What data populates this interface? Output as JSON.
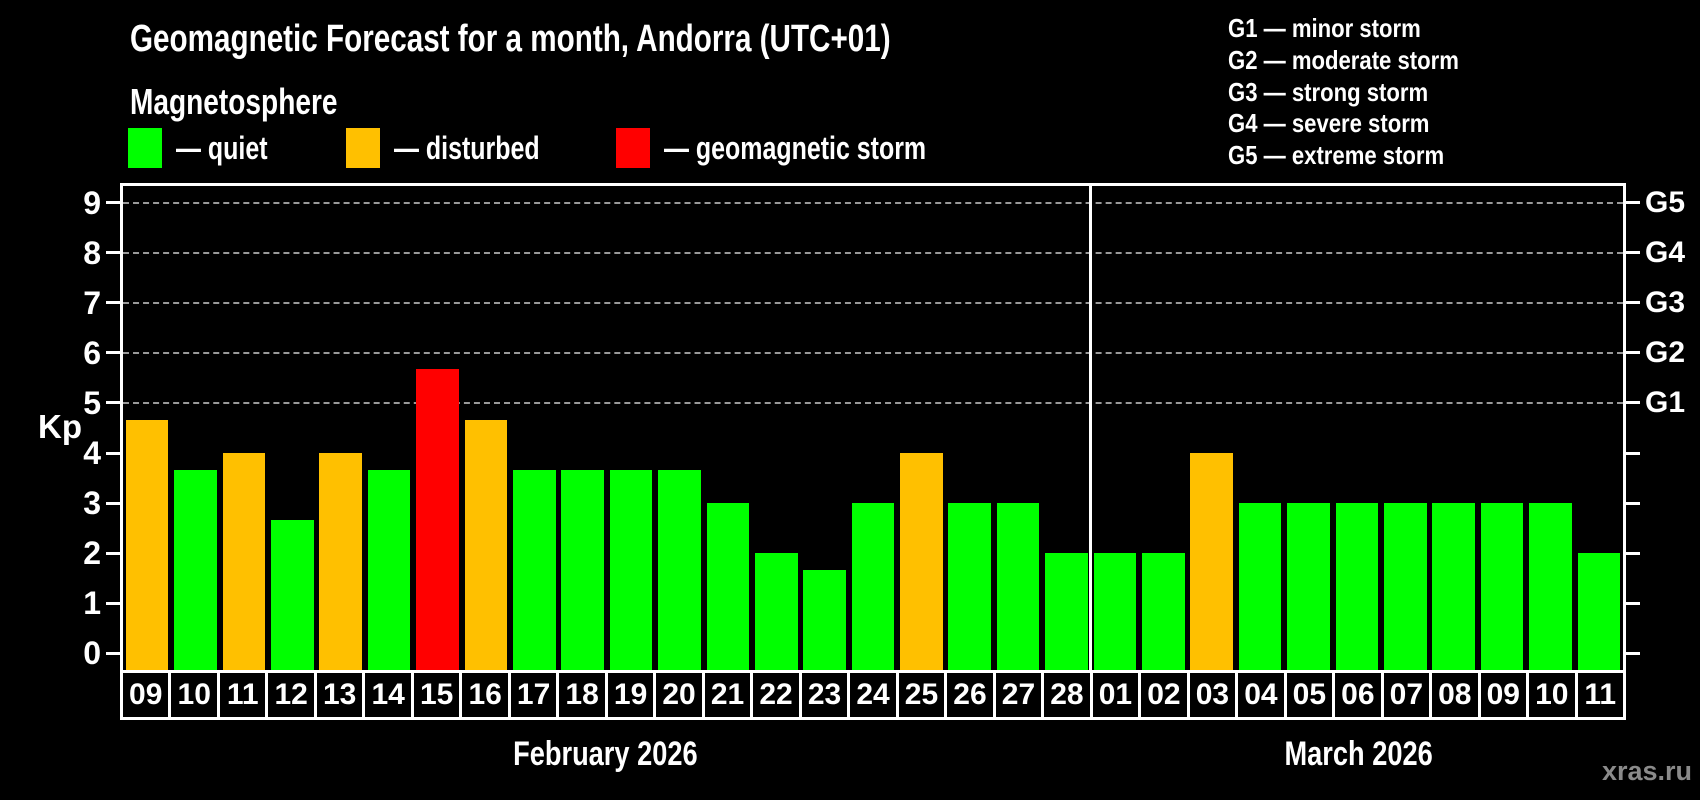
{
  "header": {
    "title": "Geomagnetic Forecast for a month, Andorra (UTC+01)",
    "subtitle": "Magnetosphere",
    "legend": [
      {
        "label": "— quiet",
        "level": "quiet"
      },
      {
        "label": "— disturbed",
        "level": "disturbed"
      },
      {
        "label": "— geomagnetic storm",
        "level": "storm"
      }
    ],
    "g_legend": [
      "G1 — minor storm",
      "G2 — moderate storm",
      "G3 — strong storm",
      "G4 — severe storm",
      "G5 — extreme storm"
    ]
  },
  "colors": {
    "quiet": "#00ff00",
    "disturbed": "#ffc000",
    "storm": "#ff0000",
    "grid": "#999999",
    "frame": "#ffffff",
    "watermark": "#8a8a8a"
  },
  "chart_data": {
    "type": "bar",
    "title": "Geomagnetic Forecast for a month, Andorra (UTC+01)",
    "ylabel": "Kp",
    "ylim": [
      0,
      9
    ],
    "y_ticks": [
      0,
      1,
      2,
      3,
      4,
      5,
      6,
      7,
      8,
      9
    ],
    "grid_lines_kp": [
      5,
      6,
      7,
      8,
      9
    ],
    "grid_style": "dashed",
    "legend_position": "top",
    "right_axis_labels": [
      {
        "kp": 5,
        "label": "G1"
      },
      {
        "kp": 6,
        "label": "G2"
      },
      {
        "kp": 7,
        "label": "G3"
      },
      {
        "kp": 8,
        "label": "G4"
      },
      {
        "kp": 9,
        "label": "G5"
      }
    ],
    "months": [
      {
        "label": "February 2026",
        "days": [
          {
            "day": "09",
            "kp": 4.67,
            "level": "disturbed"
          },
          {
            "day": "10",
            "kp": 3.67,
            "level": "quiet"
          },
          {
            "day": "11",
            "kp": 4.0,
            "level": "disturbed"
          },
          {
            "day": "12",
            "kp": 2.67,
            "level": "quiet"
          },
          {
            "day": "13",
            "kp": 4.0,
            "level": "disturbed"
          },
          {
            "day": "14",
            "kp": 3.67,
            "level": "quiet"
          },
          {
            "day": "15",
            "kp": 5.67,
            "level": "storm"
          },
          {
            "day": "16",
            "kp": 4.67,
            "level": "disturbed"
          },
          {
            "day": "17",
            "kp": 3.67,
            "level": "quiet"
          },
          {
            "day": "18",
            "kp": 3.67,
            "level": "quiet"
          },
          {
            "day": "19",
            "kp": 3.67,
            "level": "quiet"
          },
          {
            "day": "20",
            "kp": 3.67,
            "level": "quiet"
          },
          {
            "day": "21",
            "kp": 3.0,
            "level": "quiet"
          },
          {
            "day": "22",
            "kp": 2.0,
            "level": "quiet"
          },
          {
            "day": "23",
            "kp": 1.67,
            "level": "quiet"
          },
          {
            "day": "24",
            "kp": 3.0,
            "level": "quiet"
          },
          {
            "day": "25",
            "kp": 4.0,
            "level": "disturbed"
          },
          {
            "day": "26",
            "kp": 3.0,
            "level": "quiet"
          },
          {
            "day": "27",
            "kp": 3.0,
            "level": "quiet"
          },
          {
            "day": "28",
            "kp": 2.0,
            "level": "quiet"
          }
        ]
      },
      {
        "label": "March 2026",
        "days": [
          {
            "day": "01",
            "kp": 2.0,
            "level": "quiet"
          },
          {
            "day": "02",
            "kp": 2.0,
            "level": "quiet"
          },
          {
            "day": "03",
            "kp": 4.0,
            "level": "disturbed"
          },
          {
            "day": "04",
            "kp": 3.0,
            "level": "quiet"
          },
          {
            "day": "05",
            "kp": 3.0,
            "level": "quiet"
          },
          {
            "day": "06",
            "kp": 3.0,
            "level": "quiet"
          },
          {
            "day": "07",
            "kp": 3.0,
            "level": "quiet"
          },
          {
            "day": "08",
            "kp": 3.0,
            "level": "quiet"
          },
          {
            "day": "09",
            "kp": 3.0,
            "level": "quiet"
          },
          {
            "day": "10",
            "kp": 3.0,
            "level": "quiet"
          },
          {
            "day": "11",
            "kp": 2.0,
            "level": "quiet"
          }
        ]
      }
    ]
  },
  "watermark": "xras.ru"
}
